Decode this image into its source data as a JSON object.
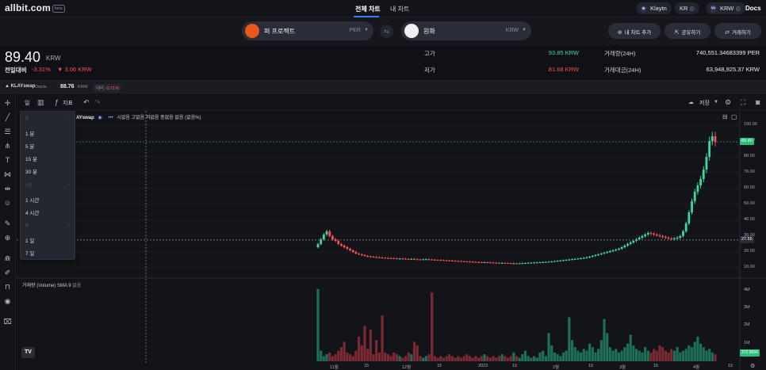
{
  "nav": {
    "logo": "allbit.com",
    "logo_badge": "beta",
    "tabs": [
      "전체 차트",
      "내 차트"
    ],
    "chips": [
      {
        "label": "Klaytn",
        "icon": "klaytn-icon"
      },
      {
        "label": "KR",
        "icon": "globe-icon"
      },
      {
        "label": "KRW",
        "icon": "won-icon"
      }
    ],
    "docs": "Docs"
  },
  "pair": {
    "base": {
      "name": "퍼 프로젝트",
      "unit": "PER"
    },
    "quote": {
      "name": "원화",
      "unit": "KRW"
    }
  },
  "actions": {
    "add_chart": "내 차트 추가",
    "share": "공유하기",
    "trade": "거래하기"
  },
  "price": {
    "value": "89.40",
    "unit": "KRW",
    "change_label": "전일대비",
    "change_pct": "-3.31%",
    "change_abs": "▼ 3.06 KRW"
  },
  "stats": {
    "high_label": "고가",
    "high_value": "93.85 KRW",
    "low_label": "저가",
    "low_value": "81.68 KRW",
    "vol_label": "거래량(24H)",
    "vol_value": "740,551.34683399 PER",
    "amt_label": "거래대금(24H)",
    "amt_value": "63,948,925.37 KRW"
  },
  "oracle": {
    "logo": "KLAYswap",
    "name": "Oracle",
    "price": "88.76",
    "unit": "KRW",
    "diff_label": "대비",
    "diff_value": "-0.71%"
  },
  "toolbar": {
    "interval": "일",
    "indicators": "지표",
    "save": "저장"
  },
  "interval_menu": {
    "sections": [
      {
        "title": "분",
        "items": [
          "1 분",
          "5 분",
          "15 분",
          "30 분"
        ]
      },
      {
        "title": "시간",
        "items": [
          "1 시간",
          "4 시간"
        ]
      },
      {
        "title": "일",
        "items": [
          "1 일",
          "7 일"
        ]
      }
    ]
  },
  "legend": {
    "source": "AYswap",
    "o_label": "시",
    "o_value": "없음",
    "h_label": "고",
    "h_value": "없음",
    "l_label": "저",
    "l_value": "없음",
    "c_label": "종",
    "c_value": "없음",
    "extra": "없음 (없음%)"
  },
  "volume_legend": {
    "label": "거래량 (Volume) SMA 9",
    "value": "없음"
  },
  "colors": {
    "up": "#3fd6a0",
    "down": "#ff4d55",
    "accent": "#3d7bff",
    "last_price": "#28c07a"
  },
  "chart_data": {
    "type": "candlestick",
    "price_axis": {
      "ylim": [
        5,
        105
      ],
      "ticks": [
        "100.00",
        "90.00",
        "80.00",
        "70.00",
        "60.00",
        "50.00",
        "40.00",
        "30.00",
        "20.00",
        "10.00"
      ]
    },
    "volume_axis": {
      "ticks": [
        "4M",
        "3M",
        "2M",
        "1M"
      ]
    },
    "x_ticks": [
      "11월",
      "15",
      "12월",
      "15",
      "2023",
      "15",
      "2월",
      "15",
      "3월",
      "15",
      "4월",
      "15"
    ],
    "last_price_tag": "89.40",
    "crosshair_tag": "27.55",
    "volume_tag": "372.865K",
    "close": [
      25,
      28,
      31,
      33,
      30,
      28,
      27,
      25,
      24,
      23,
      22,
      21,
      20,
      19,
      18.5,
      18,
      17.5,
      17.2,
      17,
      16.8,
      16.6,
      16.5,
      16.3,
      16.2,
      16.1,
      16,
      15.9,
      15.8,
      15.8,
      15.7,
      15.6,
      15.5,
      15.6,
      15.4,
      15.3,
      15.2,
      15.3,
      15.4,
      15.2,
      15.1,
      15,
      14.9,
      14.8,
      14.7,
      14.6,
      14.5,
      14.4,
      14.3,
      14.2,
      14.1,
      14,
      13.9,
      13.8,
      13.7,
      13.6,
      13.5,
      13.4,
      13.5,
      13.4,
      13.3,
      13.2,
      13.1,
      13,
      13.1,
      13,
      12.9,
      12.8,
      12.8,
      12.7,
      12.8,
      12.9,
      13,
      13.1,
      13.2,
      13.3,
      13.4,
      13.5,
      13.6,
      13.7,
      13.8,
      14,
      14.2,
      14.4,
      14.6,
      14.8,
      15,
      15.2,
      15.4,
      15.6,
      15.8,
      16,
      16.3,
      16.6,
      17,
      17.5,
      18,
      18.5,
      19,
      19.5,
      20,
      20.5,
      21,
      21.5,
      22,
      23,
      24,
      25,
      26,
      27,
      28,
      29,
      30,
      31,
      32,
      31.5,
      31,
      30.5,
      30,
      29.5,
      29,
      28.5,
      28,
      28.5,
      29,
      30,
      33,
      38,
      45,
      52,
      58,
      62,
      66,
      72,
      80,
      90,
      93,
      89.4
    ],
    "volume_m": [
      4.1,
      0.6,
      0.3,
      0.4,
      0.5,
      0.3,
      0.4,
      0.6,
      0.8,
      1.1,
      0.5,
      0.4,
      0.3,
      0.6,
      1.4,
      0.9,
      2.0,
      0.7,
      1.8,
      0.4,
      1.2,
      0.5,
      2.6,
      0.5,
      0.4,
      0.3,
      0.5,
      0.4,
      0.3,
      0.2,
      0.3,
      0.5,
      0.4,
      1.1,
      0.9,
      0.3,
      0.2,
      0.3,
      0.4,
      3.9,
      0.3,
      0.2,
      0.3,
      0.2,
      0.3,
      0.4,
      0.3,
      0.2,
      0.3,
      0.2,
      0.3,
      0.4,
      0.3,
      0.2,
      0.3,
      0.2,
      0.3,
      0.4,
      0.3,
      0.2,
      0.3,
      0.2,
      0.3,
      0.4,
      0.3,
      0.2,
      0.3,
      0.5,
      0.3,
      0.2,
      0.4,
      0.6,
      0.3,
      0.2,
      0.3,
      0.2,
      0.5,
      0.6,
      0.3,
      1.6,
      0.9,
      0.5,
      0.4,
      0.3,
      0.5,
      0.6,
      2.5,
      1.2,
      0.8,
      0.6,
      0.5,
      0.7,
      0.6,
      1.0,
      0.8,
      0.5,
      0.7,
      1.2,
      2.4,
      1.6,
      0.8,
      0.6,
      0.7,
      0.5,
      0.6,
      0.8,
      1.0,
      1.5,
      0.9,
      0.7,
      0.6,
      0.5,
      0.8,
      0.6,
      0.5,
      0.7,
      0.6,
      0.9,
      0.8,
      0.6,
      0.5,
      0.7,
      0.6,
      0.8,
      0.5,
      0.6,
      0.7,
      0.9,
      0.8,
      1.1,
      1.4,
      1.0,
      0.8,
      0.6,
      0.7,
      0.5,
      0.4
    ]
  }
}
